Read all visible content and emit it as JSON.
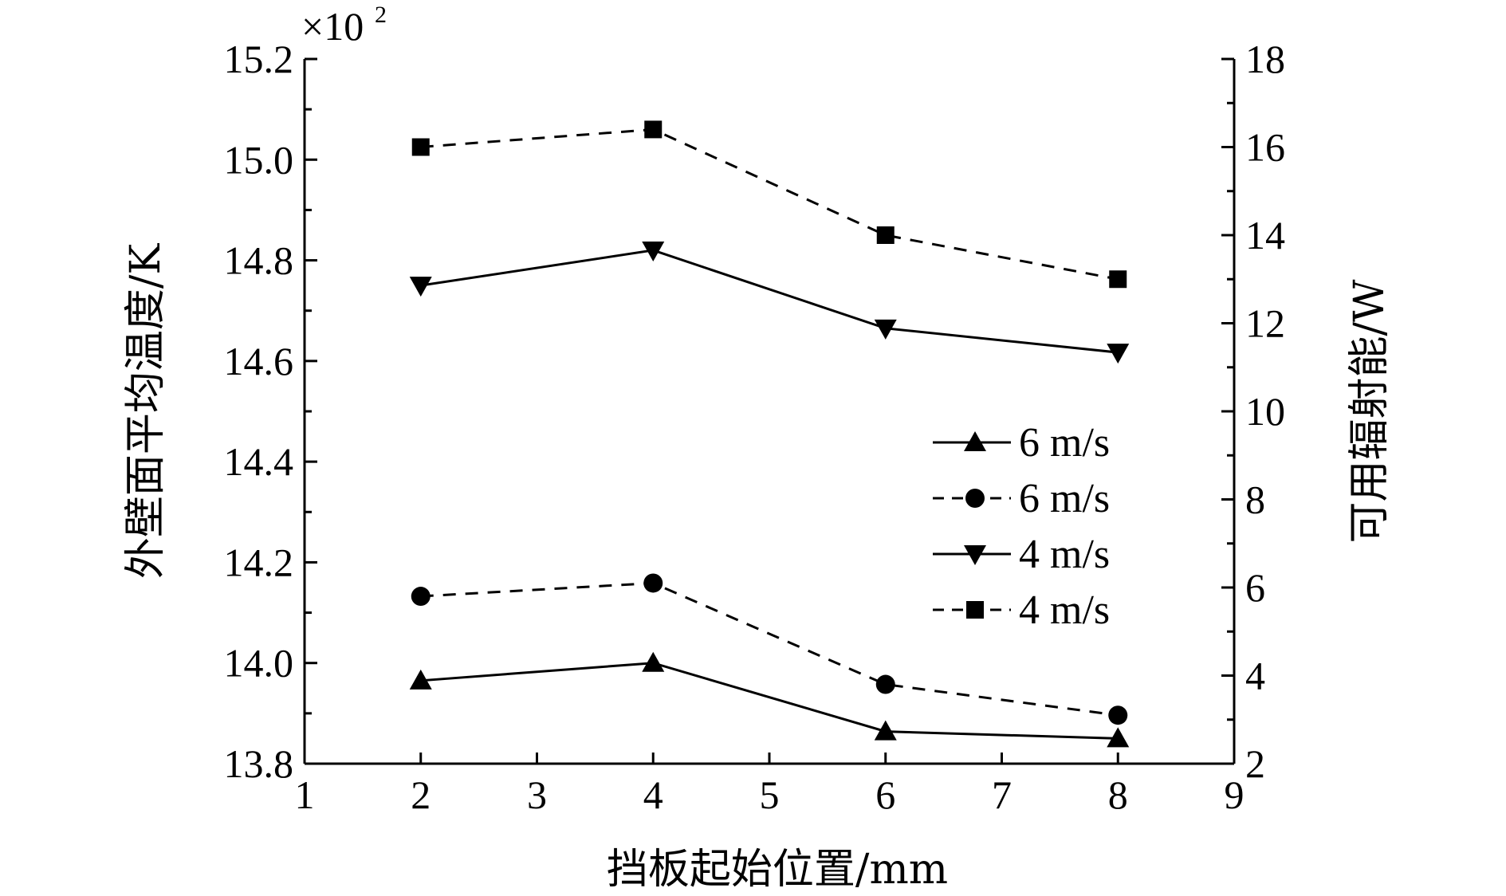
{
  "chart_data": {
    "type": "line",
    "xlabel": "挡板起始位置/mm",
    "ylabel_left": "外壁面平均温度/K",
    "ylabel_right": "可用辐射能/W",
    "left_multiplier_base": "×10",
    "left_multiplier_exp": "2",
    "xlim": [
      1,
      9
    ],
    "xticks": [
      "1",
      "2",
      "3",
      "4",
      "5",
      "6",
      "7",
      "8",
      "9"
    ],
    "ylim_left": [
      13.8,
      15.2
    ],
    "yticks_left": [
      "13.8",
      "14.0",
      "14.2",
      "14.4",
      "14.6",
      "14.8",
      "15.0",
      "15.2"
    ],
    "ylim_right": [
      2,
      18
    ],
    "yticks_right": [
      "2",
      "4",
      "6",
      "8",
      "10",
      "12",
      "14",
      "16",
      "18"
    ],
    "legend_position": "center-right",
    "series": [
      {
        "name": "6 m/s",
        "axis": "left",
        "marker": "triangle-up",
        "style": "solid",
        "x": [
          2,
          4,
          6,
          8
        ],
        "y": [
          13.965,
          14.0,
          13.864,
          13.85
        ]
      },
      {
        "name": "6 m/s",
        "axis": "right",
        "marker": "circle",
        "style": "dashed",
        "x": [
          2,
          4,
          6,
          8
        ],
        "y": [
          5.8,
          6.1,
          3.8,
          3.1
        ]
      },
      {
        "name": "4 m/s",
        "axis": "left",
        "marker": "triangle-down",
        "style": "solid",
        "x": [
          2,
          4,
          6,
          8
        ],
        "y": [
          14.75,
          14.82,
          14.665,
          14.617
        ]
      },
      {
        "name": "4 m/s",
        "axis": "right",
        "marker": "square",
        "style": "dashed",
        "x": [
          2,
          4,
          6,
          8
        ],
        "y": [
          16.0,
          16.4,
          14.0,
          13.0
        ]
      }
    ]
  }
}
